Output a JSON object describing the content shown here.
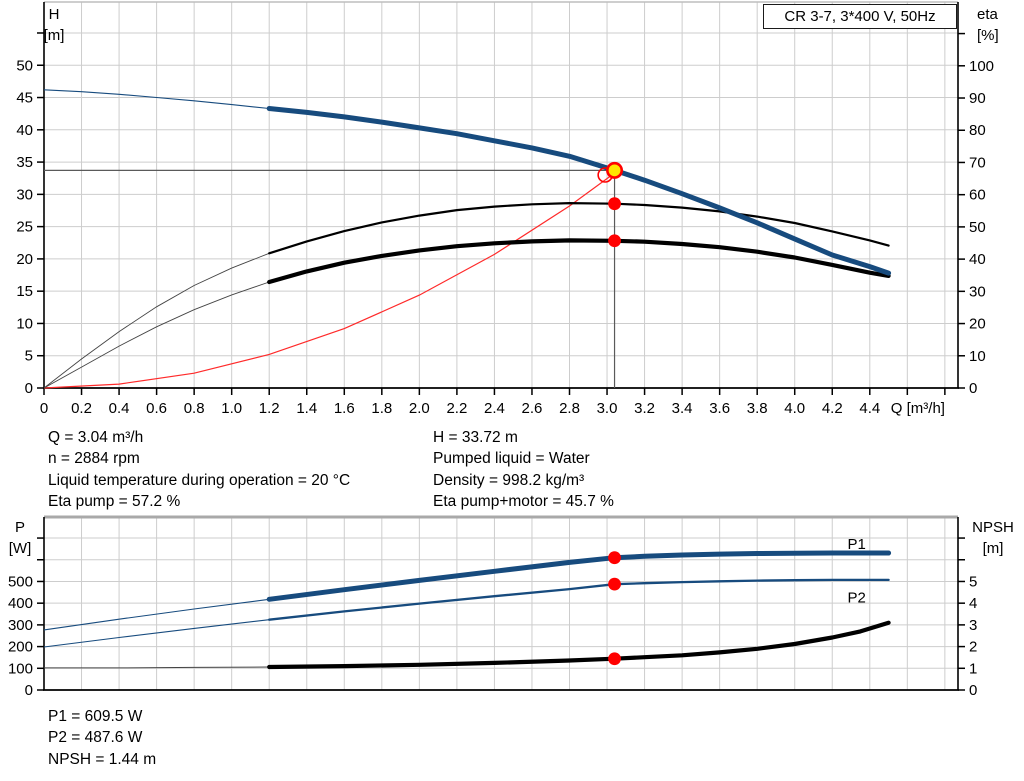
{
  "colors": {
    "curve_blue": "#174b7e",
    "curve_black": "#000000",
    "curve_red": "#ff2a2a",
    "marker_red": "#ff0000",
    "duty_point_yellow": "#ffe500",
    "grid": "#cdcdcd",
    "ref_line": "#5a5a5a"
  },
  "info": {
    "top_left": [
      "Q = 3.04 m³/h",
      "n = 2884 rpm",
      "Liquid temperature during operation = 20 °C",
      "Eta pump = 57.2 %"
    ],
    "top_right": [
      "H = 33.72 m",
      "Pumped liquid = Water",
      "Density = 998.2 kg/m³",
      "Eta pump+motor = 45.7 %"
    ],
    "bottom": [
      "P1 = 609.5 W",
      "P2 = 487.6 W",
      "NPSH = 1.44 m"
    ]
  },
  "chart_data": [
    {
      "type": "line",
      "title": "CR 3-7, 3*400 V, 50Hz",
      "x_axis": {
        "label": "Q [m³/h]",
        "min": 0,
        "max": 4.87,
        "tick_values": [
          0,
          0.2,
          0.4,
          0.6,
          0.8,
          1,
          1.2,
          1.4,
          1.6,
          1.8,
          2,
          2.2,
          2.4,
          2.6,
          2.8,
          3,
          3.2,
          3.4,
          3.6,
          3.8,
          4,
          4.2,
          4.4,
          4.6,
          4.8
        ],
        "tick_labels": [
          "0",
          "0.2",
          "0.4",
          "0.6",
          "0.8",
          "1.0",
          "1.2",
          "1.4",
          "1.6",
          "1.8",
          "2.0",
          "2.2",
          "2.4",
          "2.6",
          "2.8",
          "3.0",
          "3.2",
          "3.4",
          "3.6",
          "3.8",
          "4.0",
          "4.2",
          "4.4",
          "",
          ""
        ]
      },
      "left_axis": {
        "title": "H",
        "unit": "[m]",
        "min": 0,
        "max": 59.8,
        "tick_values": [
          0,
          5,
          10,
          15,
          20,
          25,
          30,
          35,
          40,
          45,
          50,
          55
        ],
        "tick_labels": [
          "0",
          "5",
          "10",
          "15",
          "20",
          "25",
          "30",
          "35",
          "40",
          "45",
          "50",
          ""
        ]
      },
      "right_axis": {
        "title": "eta",
        "unit": "[%]",
        "min": 0,
        "max": 119.8,
        "tick_values": [
          0,
          10,
          20,
          30,
          40,
          50,
          60,
          70,
          80,
          90,
          100,
          110
        ],
        "tick_labels": [
          "0",
          "10",
          "20",
          "30",
          "40",
          "50",
          "60",
          "70",
          "80",
          "90",
          "100",
          ""
        ]
      },
      "series": [
        {
          "name": "system-curve",
          "axis": "left",
          "color": "#ff2a2a",
          "thin_color": "#ff2a2a",
          "thin_until": 99,
          "thin_width": 1.2,
          "width": 1.2,
          "x": [
            0,
            0.4,
            0.8,
            1.2,
            1.6,
            2.0,
            2.4,
            2.8,
            3.04
          ],
          "y": [
            0,
            0.6,
            2.3,
            5.2,
            9.2,
            14.4,
            20.7,
            28.2,
            33.3
          ]
        },
        {
          "name": "eta-pump",
          "axis": "right",
          "color": "#000000",
          "thin_color": "#444444",
          "thin_until": 1.2,
          "thin_width": 0.9,
          "width": 2.2,
          "x": [
            0,
            0.2,
            0.4,
            0.6,
            0.8,
            1.0,
            1.2,
            1.4,
            1.6,
            1.8,
            2.0,
            2.2,
            2.4,
            2.6,
            2.8,
            3.04,
            3.2,
            3.4,
            3.6,
            3.8,
            4.0,
            4.2,
            4.4,
            4.5
          ],
          "y": [
            0,
            9,
            17.5,
            25.2,
            31.8,
            37.2,
            41.8,
            45.5,
            48.7,
            51.4,
            53.5,
            55.2,
            56.3,
            57.0,
            57.4,
            57.2,
            56.8,
            56.0,
            54.8,
            53.2,
            51.2,
            48.6,
            45.8,
            44.2
          ]
        },
        {
          "name": "eta-pump-plus-motor",
          "axis": "right",
          "color": "#000000",
          "thin_color": "#444444",
          "thin_until": 1.2,
          "thin_width": 0.9,
          "width": 4.2,
          "x": [
            0,
            0.2,
            0.4,
            0.6,
            0.8,
            1.0,
            1.2,
            1.4,
            1.6,
            1.8,
            2.0,
            2.2,
            2.4,
            2.6,
            2.8,
            3.04,
            3.2,
            3.4,
            3.6,
            3.8,
            4.0,
            4.2,
            4.4,
            4.5
          ],
          "y": [
            0,
            6.5,
            13.0,
            19.0,
            24.3,
            28.9,
            32.9,
            36.2,
            38.9,
            41.0,
            42.7,
            44.0,
            44.9,
            45.5,
            45.8,
            45.7,
            45.4,
            44.7,
            43.7,
            42.3,
            40.5,
            38.2,
            35.8,
            34.8
          ]
        },
        {
          "name": "head-curve",
          "axis": "left",
          "color": "#174b7e",
          "thin_color": "#174b7e",
          "thin_until": 1.2,
          "thin_width": 1.1,
          "width": 5,
          "x": [
            0,
            0.2,
            0.4,
            0.6,
            0.8,
            1.0,
            1.2,
            1.4,
            1.6,
            1.8,
            2.0,
            2.2,
            2.4,
            2.6,
            2.8,
            3.04,
            3.2,
            3.4,
            3.6,
            3.8,
            4.0,
            4.2,
            4.4,
            4.5
          ],
          "y": [
            46.2,
            45.9,
            45.5,
            45.0,
            44.5,
            43.9,
            43.3,
            42.7,
            42.0,
            41.2,
            40.3,
            39.4,
            38.3,
            37.2,
            35.9,
            33.72,
            32.2,
            30.1,
            27.9,
            25.6,
            23.1,
            20.6,
            18.8,
            17.8
          ]
        }
      ],
      "ref_lines": [
        {
          "dir": "h",
          "axis": "left",
          "at": 33.72,
          "x1": 0,
          "x2": 3.04
        },
        {
          "dir": "v",
          "axis": "left",
          "at": 3.04,
          "y1": 33.72,
          "y2": 0
        }
      ],
      "markers": [
        {
          "shape": "open",
          "axis": "left",
          "x": 2.99,
          "y": 33.0,
          "r": 7,
          "stroke": "#ff0000"
        },
        {
          "shape": "dot",
          "axis": "right",
          "x": 3.04,
          "y": 57.2,
          "r": 6.4,
          "fill": "#ff0000"
        },
        {
          "shape": "dot",
          "axis": "right",
          "x": 3.04,
          "y": 45.7,
          "r": 6.4,
          "fill": "#ff0000"
        },
        {
          "shape": "duty",
          "axis": "left",
          "x": 3.04,
          "y": 33.72,
          "r": 7.2,
          "fill": "#ffe500",
          "stroke": "#ff0000"
        }
      ],
      "point_labels": [],
      "duty_point": {
        "Q": 3.04,
        "H": 33.72,
        "eta_pump": 57.2,
        "eta_pump_motor": 45.7
      }
    },
    {
      "type": "line",
      "title": "",
      "x_axis": {
        "label": "",
        "min": 0,
        "max": 4.87,
        "tick_values": [
          0,
          0.2,
          0.4,
          0.6,
          0.8,
          1,
          1.2,
          1.4,
          1.6,
          1.8,
          2,
          2.2,
          2.4,
          2.6,
          2.8,
          3,
          3.2,
          3.4,
          3.6,
          3.8,
          4,
          4.2,
          4.4,
          4.6,
          4.8
        ],
        "tick_labels": [
          "",
          "",
          "",
          "",
          "",
          "",
          "",
          "",
          "",
          "",
          "",
          "",
          "",
          "",
          "",
          "",
          "",
          "",
          "",
          "",
          "",
          "",
          "",
          "",
          ""
        ]
      },
      "left_axis": {
        "title": "P",
        "unit": "[W]",
        "min": 0,
        "max": 797,
        "tick_values": [
          0,
          100,
          200,
          300,
          400,
          500,
          600,
          700
        ],
        "tick_labels": [
          "0",
          "100",
          "200",
          "300",
          "400",
          "500",
          "",
          ""
        ]
      },
      "right_axis": {
        "title": "NPSH",
        "unit": "[m]",
        "min": 0,
        "max": 7.97,
        "tick_values": [
          0,
          1,
          2,
          3,
          4,
          5,
          6,
          7
        ],
        "tick_labels": [
          "0",
          "1",
          "2",
          "3",
          "4",
          "5",
          "",
          ""
        ]
      },
      "series": [
        {
          "name": "npsh-curve",
          "axis": "right",
          "color": "#000000",
          "thin_color": "#444444",
          "thin_until": 1.2,
          "thin_width": 1,
          "width": 4.2,
          "x": [
            0,
            0.4,
            0.8,
            1.2,
            1.6,
            2.0,
            2.4,
            2.8,
            3.04,
            3.2,
            3.4,
            3.6,
            3.8,
            4.0,
            4.2,
            4.35,
            4.5
          ],
          "y": [
            1.02,
            1.02,
            1.04,
            1.06,
            1.1,
            1.16,
            1.25,
            1.36,
            1.44,
            1.51,
            1.6,
            1.73,
            1.9,
            2.12,
            2.42,
            2.7,
            3.1
          ]
        },
        {
          "name": "p2-curve",
          "axis": "left",
          "color": "#174b7e",
          "thin_color": "#174b7e",
          "thin_until": 1.2,
          "thin_width": 1.1,
          "width": 2.3,
          "x": [
            0,
            0.4,
            0.8,
            1.2,
            1.6,
            2.0,
            2.4,
            2.8,
            3.04,
            3.2,
            3.4,
            3.6,
            3.8,
            4.0,
            4.2,
            4.5
          ],
          "y": [
            198,
            242,
            284,
            324,
            362,
            398,
            432,
            465,
            487.6,
            492,
            497,
            501,
            504,
            506,
            507,
            507
          ]
        },
        {
          "name": "p1-curve",
          "axis": "left",
          "color": "#174b7e",
          "thin_color": "#174b7e",
          "thin_until": 1.2,
          "thin_width": 1.1,
          "width": 5,
          "x": [
            0,
            0.4,
            0.8,
            1.2,
            1.6,
            2.0,
            2.4,
            2.8,
            3.04,
            3.2,
            3.4,
            3.6,
            3.8,
            4.0,
            4.2,
            4.5
          ],
          "y": [
            277,
            326,
            373,
            418,
            462,
            505,
            547,
            588,
            609.5,
            616,
            622,
            626,
            629,
            630,
            631,
            631
          ]
        }
      ],
      "ref_lines": [],
      "markers": [
        {
          "shape": "dot",
          "axis": "left",
          "x": 3.04,
          "y": 609.5,
          "r": 6.4,
          "fill": "#ff0000"
        },
        {
          "shape": "dot",
          "axis": "left",
          "x": 3.04,
          "y": 487.6,
          "r": 6.4,
          "fill": "#ff0000"
        },
        {
          "shape": "dot",
          "axis": "right",
          "x": 3.04,
          "y": 1.44,
          "r": 6.4,
          "fill": "#ff0000"
        }
      ],
      "point_labels": [
        {
          "text": "P1",
          "axis": "left",
          "x": 4.33,
          "y": 672,
          "color": "#174b7e"
        },
        {
          "text": "P2",
          "axis": "left",
          "x": 4.33,
          "y": 425,
          "color": "#174b7e"
        }
      ],
      "duty_point": {
        "Q": 3.04,
        "P1": 609.5,
        "P2": 487.6,
        "NPSH": 1.44
      }
    }
  ]
}
